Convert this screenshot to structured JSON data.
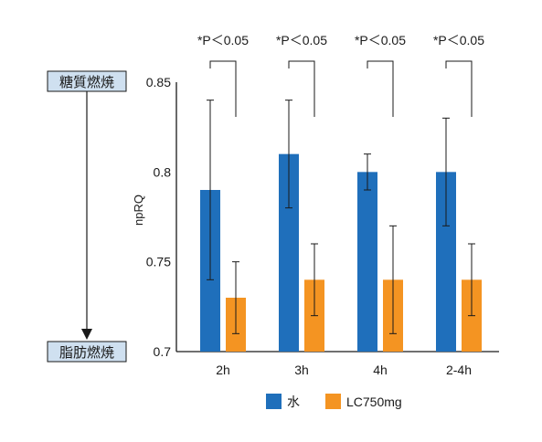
{
  "chart_data": {
    "type": "bar",
    "categories": [
      "2h",
      "3h",
      "4h",
      "2-4h"
    ],
    "series": [
      {
        "name": "水",
        "color": "#1f6fbb",
        "values": [
          0.79,
          0.81,
          0.8,
          0.8
        ],
        "error_low": [
          0.74,
          0.78,
          0.79,
          0.77
        ],
        "error_high": [
          0.84,
          0.84,
          0.81,
          0.83
        ]
      },
      {
        "name": "LC750mg",
        "color": "#f49422",
        "values": [
          0.73,
          0.74,
          0.74,
          0.74
        ],
        "error_low": [
          0.71,
          0.72,
          0.71,
          0.72
        ],
        "error_high": [
          0.75,
          0.76,
          0.77,
          0.76
        ]
      }
    ],
    "ylabel": "npRQ",
    "ylim": [
      0.7,
      0.85
    ],
    "yticks": [
      "0.85",
      "0.8",
      "0.75",
      "0.7"
    ],
    "ytick_values": [
      0.85,
      0.8,
      0.75,
      0.7
    ],
    "significance": [
      "*P＜0.05",
      "*P＜0.05",
      "*P＜0.05",
      "*P＜0.05"
    ],
    "grid": false,
    "legend_position": "bottom"
  },
  "side_axis": {
    "top_label": "糖質燃焼",
    "bottom_label": "脂肪燃焼"
  }
}
